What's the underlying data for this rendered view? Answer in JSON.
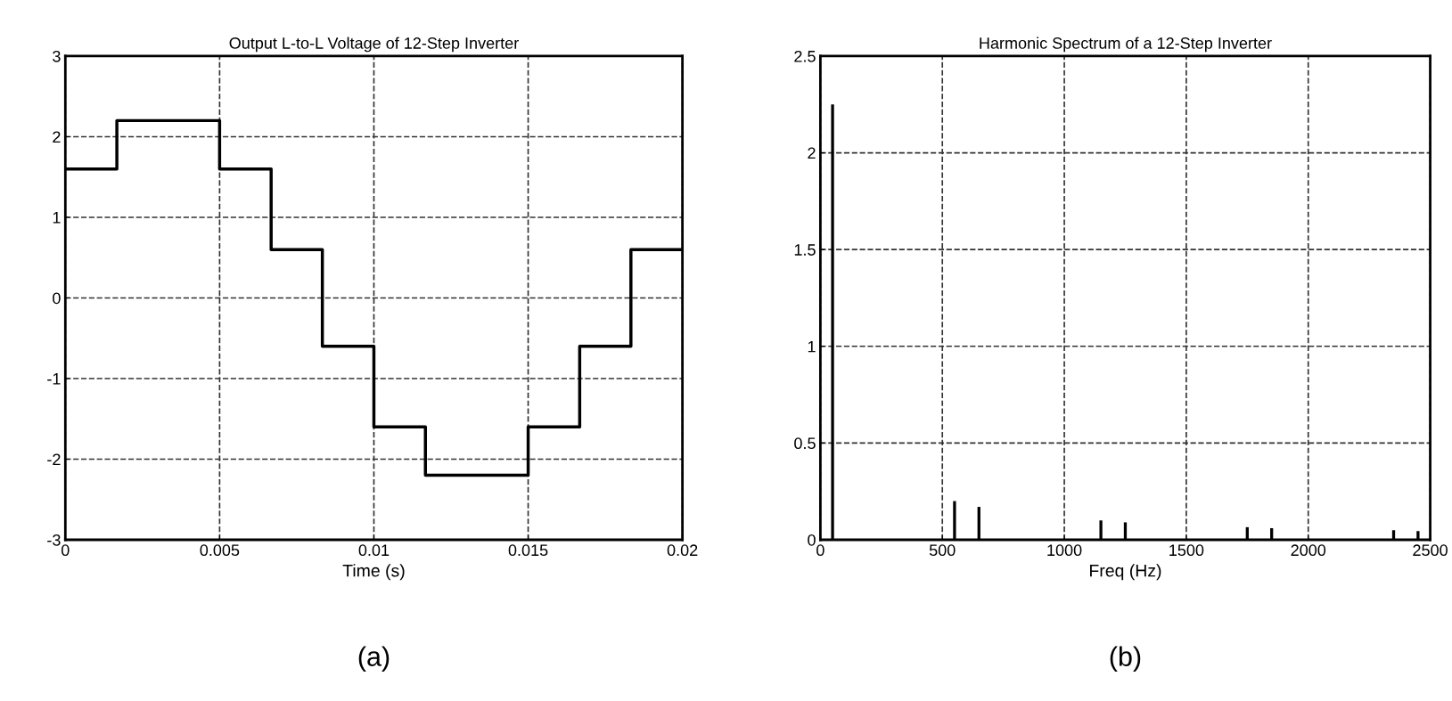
{
  "chart_data": [
    {
      "type": "step",
      "title": "Output L-to-L Voltage of 12-Step Inverter",
      "xlabel": "Time (s)",
      "x": [
        0,
        0.00167,
        0.005,
        0.00667,
        0.00833,
        0.01,
        0.01167,
        0.015,
        0.01667,
        0.01833,
        0.02
      ],
      "series": [
        {
          "color": "#000000",
          "values": [
            1.6,
            2.2,
            1.6,
            0.6,
            -0.6,
            -1.6,
            -2.2,
            -1.6,
            -0.6,
            0.6,
            0.6
          ]
        }
      ],
      "xlim": [
        0,
        0.02
      ],
      "xticks": [
        0,
        0.005,
        0.01,
        0.015,
        0.02
      ],
      "ylim": [
        -3,
        3
      ],
      "yticks": [
        -3,
        -2,
        -1,
        0,
        1,
        2,
        3
      ],
      "grid": true,
      "line_style": "solid",
      "annotations": [
        "(a)"
      ]
    },
    {
      "type": "bar",
      "title": "Harmonic Spectrum of a 12-Step Inverter",
      "xlabel": "Freq (Hz)",
      "x": [
        50,
        550,
        650,
        1150,
        1250,
        1750,
        1850,
        2350,
        2450
      ],
      "series": [
        {
          "color": "#000000",
          "values": [
            2.25,
            0.2,
            0.17,
            0.1,
            0.09,
            0.065,
            0.06,
            0.05,
            0.045
          ]
        }
      ],
      "xlim": [
        0,
        2500
      ],
      "xticks": [
        0,
        500,
        1000,
        1500,
        2000,
        2500
      ],
      "ylim": [
        0,
        2.5
      ],
      "yticks": [
        0,
        0.5,
        1,
        1.5,
        2,
        2.5
      ],
      "grid": true,
      "annotations": [
        "(b)"
      ]
    }
  ]
}
